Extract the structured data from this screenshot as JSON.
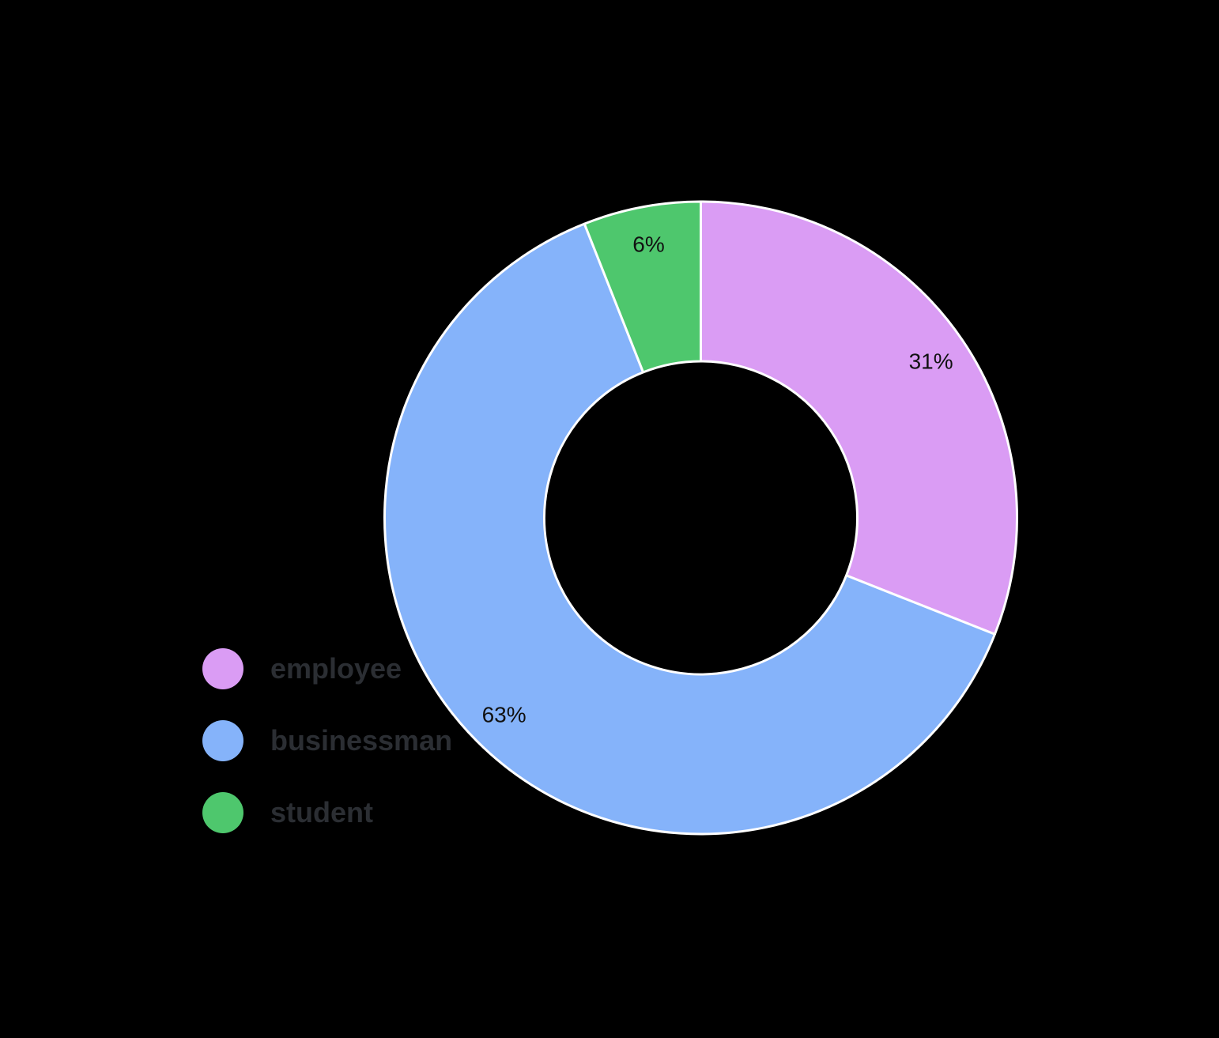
{
  "chart_data": {
    "type": "pie",
    "variant": "donut",
    "title": "",
    "categories": [
      "employee",
      "businessman",
      "student"
    ],
    "values": [
      31,
      63,
      6
    ],
    "slice_labels": [
      "31%",
      "63%",
      "6%"
    ],
    "colors": [
      "#da9cf4",
      "#85b3fa",
      "#4ec76d"
    ],
    "border_color": "#ffffff",
    "border_width": 3,
    "cutout_percent": 50,
    "start_angle_deg": 0,
    "direction": "clockwise",
    "legend_position": "left-middle",
    "background": "#000000",
    "slice_label_color": "#111111"
  },
  "legend": {
    "items": [
      {
        "label": "employee",
        "color": "#da9cf4"
      },
      {
        "label": "businessman",
        "color": "#85b3fa"
      },
      {
        "label": "student",
        "color": "#4ec76d"
      }
    ],
    "text_color": "#2b2e33"
  }
}
